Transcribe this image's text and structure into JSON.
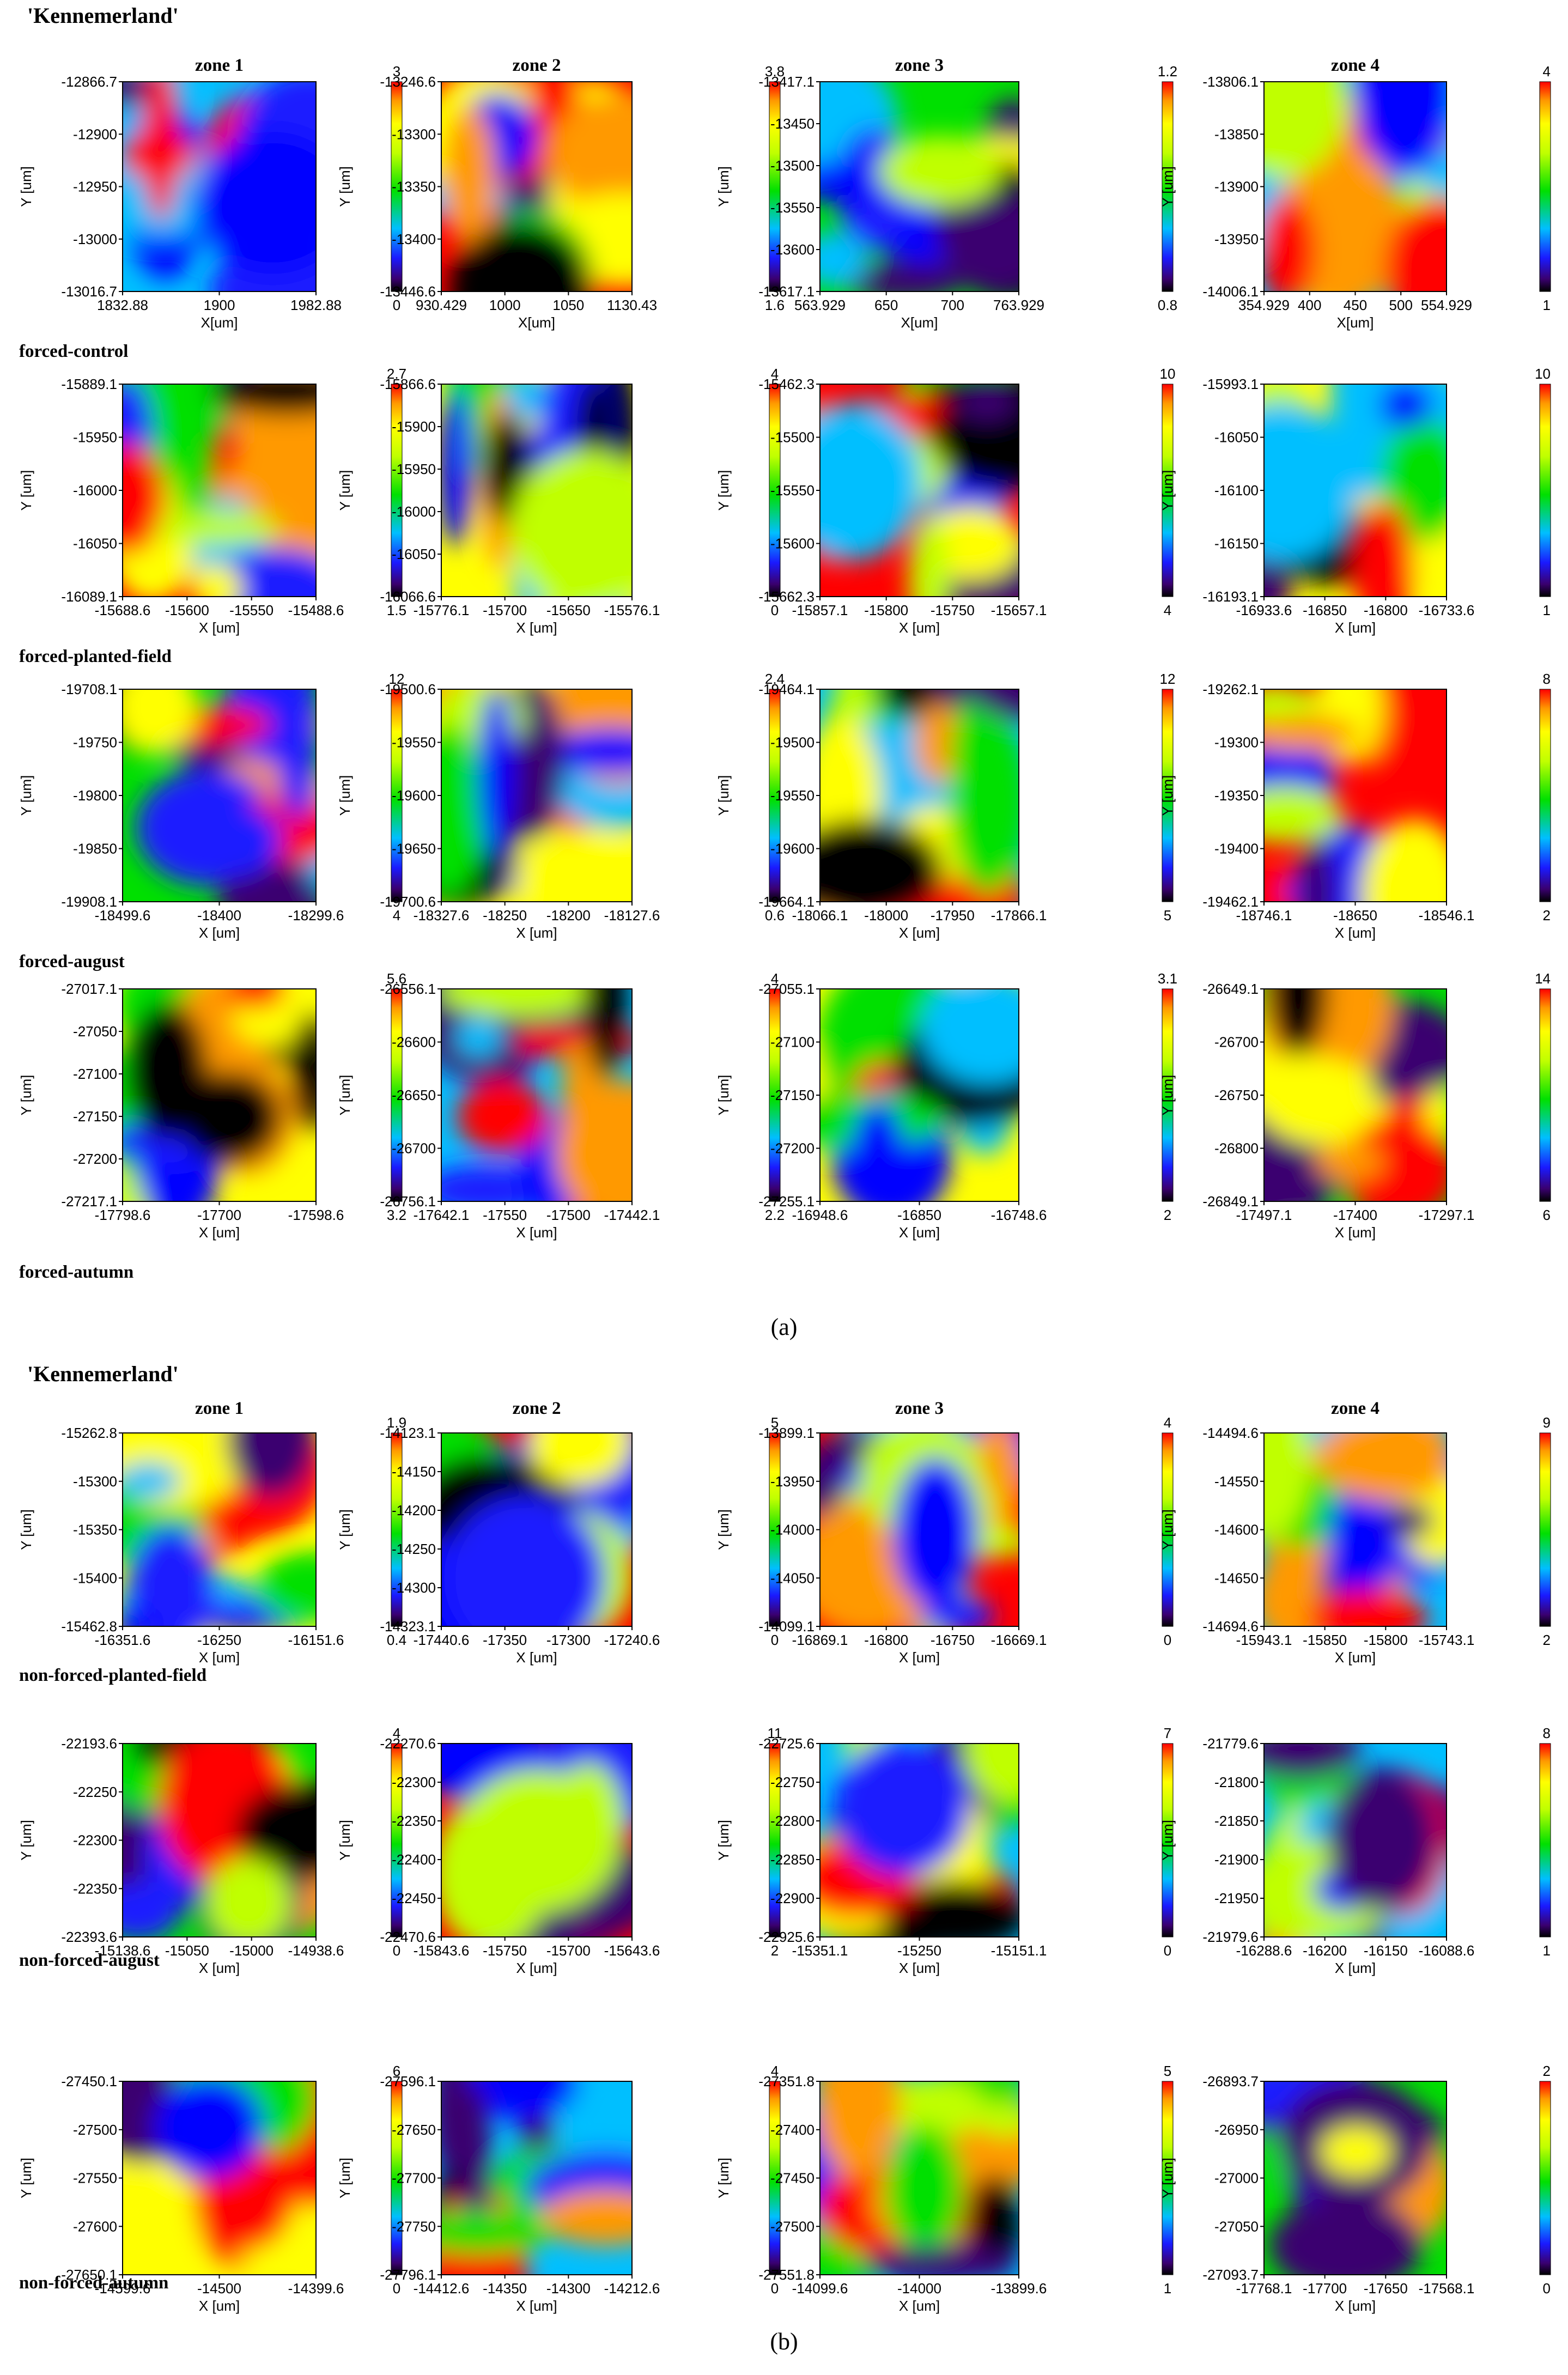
{
  "figure": {
    "panel_a": {
      "title": "'Kennemerland'",
      "caption": "(a)",
      "zones": [
        "zone 1",
        "zone 2",
        "zone 3",
        "zone 4"
      ],
      "row_labels": [
        "forced-control",
        "forced-planted-field",
        "forced-august",
        "forced-autumn"
      ]
    },
    "panel_b": {
      "title": "'Kennemerland'",
      "caption": "(b)",
      "zones": [
        "zone 1",
        "zone 2",
        "zone 3",
        "zone 4"
      ],
      "row_labels": [
        "non-forced-planted-field",
        "non-forced-august",
        "non-forced-autumn"
      ]
    }
  },
  "chart_data": [
    {
      "type": "heatmap",
      "panel": "a",
      "row": "forced-control",
      "zone": "zone 1",
      "xlabel": "X[um]",
      "ylabel": "Y [um]",
      "xticks": [
        "1832.88",
        "1900",
        "1982.88"
      ],
      "yticks": [
        "-12866.7",
        "-12900",
        "-12950",
        "-13000",
        "-13016.7"
      ],
      "colorbar": {
        "max": "3",
        "min": "0"
      }
    },
    {
      "type": "heatmap",
      "panel": "a",
      "row": "forced-control",
      "zone": "zone 2",
      "xlabel": "X[um]",
      "ylabel": "Y [um]",
      "xticks": [
        "930.429",
        "1000",
        "1050",
        "1130.43"
      ],
      "yticks": [
        "-13246.6",
        "-13300",
        "-13350",
        "-13400",
        "-13446.6"
      ],
      "colorbar": {
        "max": "3.8",
        "min": "1.6"
      }
    },
    {
      "type": "heatmap",
      "panel": "a",
      "row": "forced-control",
      "zone": "zone 3",
      "xlabel": "X[um]",
      "ylabel": "Y [um]",
      "xticks": [
        "563.929",
        "650",
        "700",
        "763.929"
      ],
      "yticks": [
        "-13417.1",
        "-13450",
        "-13500",
        "-13550",
        "-13600",
        "-13617.1"
      ],
      "colorbar": {
        "max": "1.2",
        "min": "0.8"
      }
    },
    {
      "type": "heatmap",
      "panel": "a",
      "row": "forced-control",
      "zone": "zone 4",
      "xlabel": "X[um]",
      "ylabel": "Y [um]",
      "xticks": [
        "354.929",
        "400",
        "450",
        "500",
        "554.929"
      ],
      "yticks": [
        "-13806.1",
        "-13850",
        "-13900",
        "-13950",
        "-14006.1"
      ],
      "colorbar": {
        "max": "4",
        "min": "1"
      }
    },
    {
      "type": "heatmap",
      "panel": "a",
      "row": "forced-planted-field",
      "zone": "zone 1",
      "xlabel": "X [um]",
      "ylabel": "Y [um]",
      "xticks": [
        "-15688.6",
        "-15600",
        "-15550",
        "-15488.6"
      ],
      "yticks": [
        "-15889.1",
        "-15950",
        "-16000",
        "-16050",
        "-16089.1"
      ],
      "colorbar": {
        "max": "2.7",
        "min": "1.5"
      }
    },
    {
      "type": "heatmap",
      "panel": "a",
      "row": "forced-planted-field",
      "zone": "zone 2",
      "xlabel": "X [um]",
      "ylabel": "Y [um]",
      "xticks": [
        "-15776.1",
        "-15700",
        "-15650",
        "-15576.1"
      ],
      "yticks": [
        "-15866.6",
        "-15900",
        "-15950",
        "-16000",
        "-16050",
        "-16066.6"
      ],
      "colorbar": {
        "max": "4",
        "min": "0"
      }
    },
    {
      "type": "heatmap",
      "panel": "a",
      "row": "forced-planted-field",
      "zone": "zone 3",
      "xlabel": "X [um]",
      "ylabel": "Y [um]",
      "xticks": [
        "-15857.1",
        "-15800",
        "-15750",
        "-15657.1"
      ],
      "yticks": [
        "-15462.3",
        "-15500",
        "-15550",
        "-15600",
        "-15662.3"
      ],
      "colorbar": {
        "max": "10",
        "min": "4"
      }
    },
    {
      "type": "heatmap",
      "panel": "a",
      "row": "forced-planted-field",
      "zone": "zone 4",
      "xlabel": "X [um]",
      "ylabel": "Y [um]",
      "xticks": [
        "-16933.6",
        "-16850",
        "-16800",
        "-16733.6"
      ],
      "yticks": [
        "-15993.1",
        "-16050",
        "-16100",
        "-16150",
        "-16193.1"
      ],
      "colorbar": {
        "max": "10",
        "min": "1"
      }
    },
    {
      "type": "heatmap",
      "panel": "a",
      "row": "forced-august",
      "zone": "zone 1",
      "xlabel": "X [um]",
      "ylabel": "Y [um]",
      "xticks": [
        "-18499.6",
        "-18400",
        "-18299.6"
      ],
      "yticks": [
        "-19708.1",
        "-19750",
        "-19800",
        "-19850",
        "-19908.1"
      ],
      "colorbar": {
        "max": "12",
        "min": "4"
      }
    },
    {
      "type": "heatmap",
      "panel": "a",
      "row": "forced-august",
      "zone": "zone 2",
      "xlabel": "X [um]",
      "ylabel": "Y [um]",
      "xticks": [
        "-18327.6",
        "-18250",
        "-18200",
        "-18127.6"
      ],
      "yticks": [
        "-19500.6",
        "-19550",
        "-19600",
        "-19650",
        "-19700.6"
      ],
      "colorbar": {
        "max": "2.4",
        "min": "0.6"
      }
    },
    {
      "type": "heatmap",
      "panel": "a",
      "row": "forced-august",
      "zone": "zone 3",
      "xlabel": "X [um]",
      "ylabel": "Y [um]",
      "xticks": [
        "-18066.1",
        "-18000",
        "-17950",
        "-17866.1"
      ],
      "yticks": [
        "-19464.1",
        "-19500",
        "-19550",
        "-19600",
        "-19664.1"
      ],
      "colorbar": {
        "max": "12",
        "min": "5"
      }
    },
    {
      "type": "heatmap",
      "panel": "a",
      "row": "forced-august",
      "zone": "zone 4",
      "xlabel": "X [um]",
      "ylabel": "Y [um]",
      "xticks": [
        "-18746.1",
        "-18650",
        "-18546.1"
      ],
      "yticks": [
        "-19262.1",
        "-19300",
        "-19350",
        "-19400",
        "-19462.1"
      ],
      "colorbar": {
        "max": "8",
        "min": "2"
      }
    },
    {
      "type": "heatmap",
      "panel": "a",
      "row": "forced-autumn",
      "zone": "zone 1",
      "xlabel": "X [um]",
      "ylabel": "Y [um]",
      "xticks": [
        "-17798.6",
        "-17700",
        "-17598.6"
      ],
      "yticks": [
        "-27017.1",
        "-27050",
        "-27100",
        "-27150",
        "-27200",
        "-27217.1"
      ],
      "colorbar": {
        "max": "5.6",
        "min": "3.2"
      }
    },
    {
      "type": "heatmap",
      "panel": "a",
      "row": "forced-autumn",
      "zone": "zone 2",
      "xlabel": "X [um]",
      "ylabel": "Y [um]",
      "xticks": [
        "-17642.1",
        "-17550",
        "-17500",
        "-17442.1"
      ],
      "yticks": [
        "-26556.1",
        "-26600",
        "-26650",
        "-26700",
        "-26756.1"
      ],
      "colorbar": {
        "max": "4",
        "min": "2.2"
      }
    },
    {
      "type": "heatmap",
      "panel": "a",
      "row": "forced-autumn",
      "zone": "zone 3",
      "xlabel": "X [um]",
      "ylabel": "Y [um]",
      "xticks": [
        "-16948.6",
        "-16850",
        "-16748.6"
      ],
      "yticks": [
        "-27055.1",
        "-27100",
        "-27150",
        "-27200",
        "-27255.1"
      ],
      "colorbar": {
        "max": "3.1",
        "min": "2"
      }
    },
    {
      "type": "heatmap",
      "panel": "a",
      "row": "forced-autumn",
      "zone": "zone 4",
      "xlabel": "X [um]",
      "ylabel": "Y [um]",
      "xticks": [
        "-17497.1",
        "-17400",
        "-17297.1"
      ],
      "yticks": [
        "-26649.1",
        "-26700",
        "-26750",
        "-26800",
        "-26849.1"
      ],
      "colorbar": {
        "max": "14",
        "min": "6"
      }
    },
    {
      "type": "heatmap",
      "panel": "b",
      "row": "non-forced-planted-field",
      "zone": "zone 1",
      "xlabel": "X [um]",
      "ylabel": "Y [um]",
      "xticks": [
        "-16351.6",
        "-16250",
        "-16151.6"
      ],
      "yticks": [
        "-15262.8",
        "-15300",
        "-15350",
        "-15400",
        "-15462.8"
      ],
      "colorbar": {
        "max": "1.9",
        "min": "0.4"
      }
    },
    {
      "type": "heatmap",
      "panel": "b",
      "row": "non-forced-planted-field",
      "zone": "zone 2",
      "xlabel": "X [um]",
      "ylabel": "Y [um]",
      "xticks": [
        "-17440.6",
        "-17350",
        "-17300",
        "-17240.6"
      ],
      "yticks": [
        "-14123.1",
        "-14150",
        "-14200",
        "-14250",
        "-14300",
        "-14323.1"
      ],
      "colorbar": {
        "max": "5",
        "min": "0"
      }
    },
    {
      "type": "heatmap",
      "panel": "b",
      "row": "non-forced-planted-field",
      "zone": "zone 3",
      "xlabel": "X [um]",
      "ylabel": "Y [um]",
      "xticks": [
        "-16869.1",
        "-16800",
        "-16750",
        "-16669.1"
      ],
      "yticks": [
        "-13899.1",
        "-13950",
        "-14000",
        "-14050",
        "-14099.1"
      ],
      "colorbar": {
        "max": "4",
        "min": "0"
      }
    },
    {
      "type": "heatmap",
      "panel": "b",
      "row": "non-forced-planted-field",
      "zone": "zone 4",
      "xlabel": "X [um]",
      "ylabel": "Y [um]",
      "xticks": [
        "-15943.1",
        "-15850",
        "-15800",
        "-15743.1"
      ],
      "yticks": [
        "-14494.6",
        "-14550",
        "-14600",
        "-14650",
        "-14694.6"
      ],
      "colorbar": {
        "max": "9",
        "min": "2"
      }
    },
    {
      "type": "heatmap",
      "panel": "b",
      "row": "non-forced-august",
      "zone": "zone 1",
      "xlabel": "X [um]",
      "ylabel": "Y [um]",
      "xticks": [
        "-15138.6",
        "-15050",
        "-15000",
        "-14938.6"
      ],
      "yticks": [
        "-22193.6",
        "-22250",
        "-22300",
        "-22350",
        "-22393.6"
      ],
      "colorbar": {
        "max": "4",
        "min": "0"
      }
    },
    {
      "type": "heatmap",
      "panel": "b",
      "row": "non-forced-august",
      "zone": "zone 2",
      "xlabel": "X [um]",
      "ylabel": "Y [um]",
      "xticks": [
        "-15843.6",
        "-15750",
        "-15700",
        "-15643.6"
      ],
      "yticks": [
        "-22270.6",
        "-22300",
        "-22350",
        "-22400",
        "-22450",
        "-22470.6"
      ],
      "colorbar": {
        "max": "11",
        "min": "2"
      }
    },
    {
      "type": "heatmap",
      "panel": "b",
      "row": "non-forced-august",
      "zone": "zone 3",
      "xlabel": "X [um]",
      "ylabel": "Y [um]",
      "xticks": [
        "-15351.1",
        "-15250",
        "-15151.1"
      ],
      "yticks": [
        "-22725.6",
        "-22750",
        "-22800",
        "-22850",
        "-22900",
        "-22925.6"
      ],
      "colorbar": {
        "max": "7",
        "min": "0"
      }
    },
    {
      "type": "heatmap",
      "panel": "b",
      "row": "non-forced-august",
      "zone": "zone 4",
      "xlabel": "X [um]",
      "ylabel": "Y [um]",
      "xticks": [
        "-16288.6",
        "-16200",
        "-16150",
        "-16088.6"
      ],
      "yticks": [
        "-21779.6",
        "-21800",
        "-21850",
        "-21900",
        "-21950",
        "-21979.6"
      ],
      "colorbar": {
        "max": "8",
        "min": "1"
      }
    },
    {
      "type": "heatmap",
      "panel": "b",
      "row": "non-forced-autumn",
      "zone": "zone 1",
      "xlabel": "X [um]",
      "ylabel": "Y [um]",
      "xticks": [
        "-14599.6",
        "-14500",
        "-14399.6"
      ],
      "yticks": [
        "-27450.1",
        "-27500",
        "-27550",
        "-27600",
        "-27650.1"
      ],
      "colorbar": {
        "max": "6",
        "min": "0"
      }
    },
    {
      "type": "heatmap",
      "panel": "b",
      "row": "non-forced-autumn",
      "zone": "zone 2",
      "xlabel": "X [um]",
      "ylabel": "Y [um]",
      "xticks": [
        "-14412.6",
        "-14350",
        "-14300",
        "-14212.6"
      ],
      "yticks": [
        "-27596.1",
        "-27650",
        "-27700",
        "-27750",
        "-27796.1"
      ],
      "colorbar": {
        "max": "4",
        "min": "0"
      }
    },
    {
      "type": "heatmap",
      "panel": "b",
      "row": "non-forced-autumn",
      "zone": "zone 3",
      "xlabel": "X [um]",
      "ylabel": "Y [um]",
      "xticks": [
        "-14099.6",
        "-14000",
        "-13899.6"
      ],
      "yticks": [
        "-27351.8",
        "-27400",
        "-27450",
        "-27500",
        "-27551.8"
      ],
      "colorbar": {
        "max": "5",
        "min": "1"
      }
    },
    {
      "type": "heatmap",
      "panel": "b",
      "row": "non-forced-autumn",
      "zone": "zone 4",
      "xlabel": "X [um]",
      "ylabel": "Y [um]",
      "xticks": [
        "-17768.1",
        "-17700",
        "-17650",
        "-17568.1"
      ],
      "yticks": [
        "-26893.7",
        "-26950",
        "-27000",
        "-27050",
        "-27093.7"
      ],
      "colorbar": {
        "max": "2",
        "min": "0"
      }
    }
  ]
}
